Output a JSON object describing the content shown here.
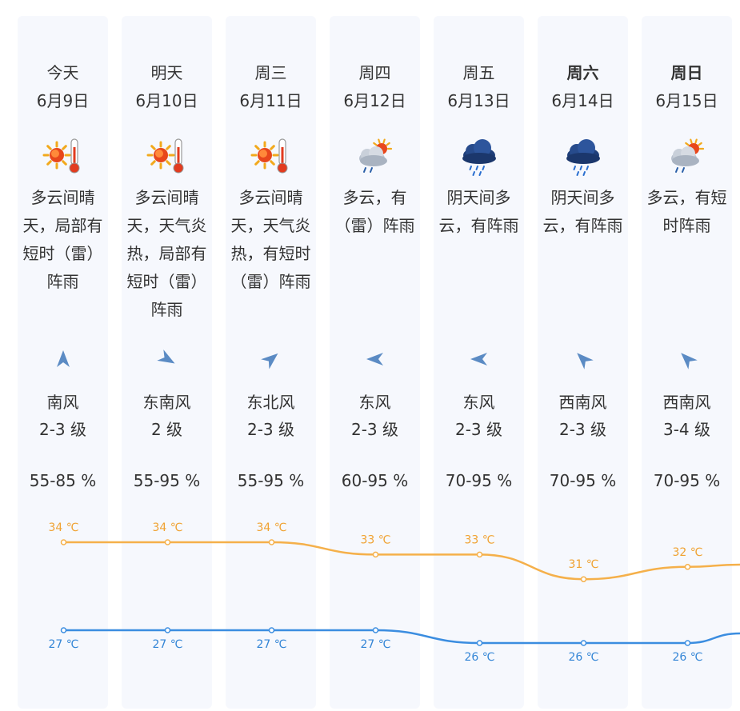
{
  "colors": {
    "high_line": "#f5b04a",
    "high_label": "#f0a232",
    "low_line": "#3b8de0",
    "low_label": "#3385d6",
    "card_bg": "#f6f8fd",
    "wind_arrow": "#5b8bc4"
  },
  "days": [
    {
      "day": "今天",
      "date": "6月9日",
      "bold": false,
      "icon": "sunny-hot-icon",
      "desc_lines": [
        "多云间晴",
        "天，局部有",
        "短时（雷）",
        "阵雨"
      ],
      "wind_dir_deg": 0,
      "wind": "南风",
      "wind_level": "2-3 级",
      "humidity": "55-85 %"
    },
    {
      "day": "明天",
      "date": "6月10日",
      "bold": false,
      "icon": "sunny-hot-icon",
      "desc_lines": [
        "多云间晴",
        "天，天气炎",
        "热，局部有",
        "短时（雷）",
        "阵雨"
      ],
      "wind_dir_deg": 120,
      "wind": "东南风",
      "wind_level": "2 级",
      "humidity": "55-95 %"
    },
    {
      "day": "周三",
      "date": "6月11日",
      "bold": false,
      "icon": "sunny-hot-icon",
      "desc_lines": [
        "多云间晴",
        "天，天气炎",
        "热，有短时",
        "（雷）阵雨"
      ],
      "wind_dir_deg": 50,
      "wind": "东北风",
      "wind_level": "2-3 级",
      "humidity": "55-95 %"
    },
    {
      "day": "周四",
      "date": "6月12日",
      "bold": false,
      "icon": "cloudy-sun-icon",
      "desc_lines": [
        "多云，有",
        "（雷）阵雨"
      ],
      "wind_dir_deg": 270,
      "wind": "东风",
      "wind_level": "2-3 级",
      "humidity": "60-95 %"
    },
    {
      "day": "周五",
      "date": "6月13日",
      "bold": false,
      "icon": "rain-cloud-icon",
      "desc_lines": [
        "阴天间多",
        "云，有阵雨"
      ],
      "wind_dir_deg": 270,
      "wind": "东风",
      "wind_level": "2-3 级",
      "humidity": "70-95 %"
    },
    {
      "day": "周六",
      "date": "6月14日",
      "bold": true,
      "icon": "rain-cloud-icon",
      "desc_lines": [
        "阴天间多",
        "云，有阵雨"
      ],
      "wind_dir_deg": 315,
      "wind": "西南风",
      "wind_level": "2-3 级",
      "humidity": "70-95 %"
    },
    {
      "day": "周日",
      "date": "6月15日",
      "bold": true,
      "icon": "cloudy-sun-icon",
      "desc_lines": [
        "多云，有短",
        "时阵雨"
      ],
      "wind_dir_deg": 315,
      "wind": "西南风",
      "wind_level": "3-4 级",
      "humidity": "70-95 %"
    }
  ],
  "chart_data": {
    "type": "line",
    "categories": [
      "6月9日",
      "6月10日",
      "6月11日",
      "6月12日",
      "6月13日",
      "6月14日",
      "6月15日"
    ],
    "series": [
      {
        "values": [
          34,
          34,
          34,
          33,
          33,
          31,
          32
        ],
        "labels": [
          "34 ℃",
          "34 ℃",
          "34 ℃",
          "33 ℃",
          "33 ℃",
          "31 ℃",
          "32 ℃"
        ]
      },
      {
        "values": [
          27,
          27,
          27,
          27,
          26,
          26,
          26
        ],
        "labels": [
          "27 ℃",
          "27 ℃",
          "27 ℃",
          "27 ℃",
          "26 ℃",
          "26 ℃",
          "26 ℃"
        ]
      }
    ],
    "unit": "℃",
    "grid": false,
    "legend": "none"
  }
}
